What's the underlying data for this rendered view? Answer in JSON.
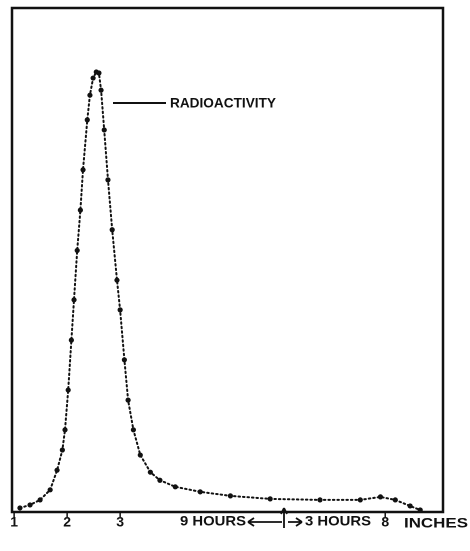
{
  "chart_data": {
    "type": "line",
    "annotation": "RADIOACTIVITY",
    "x_labels": [
      "9 HOURS",
      "3 HOURS"
    ],
    "xlabel": "INCHES",
    "color": "#111111",
    "line_style": "dotted",
    "x": [
      1.11,
      1.3,
      1.49,
      1.68,
      1.81,
      1.91,
      1.96,
      2.02,
      2.08,
      2.13,
      2.19,
      2.25,
      2.3,
      2.38,
      2.43,
      2.49,
      2.55,
      2.6,
      2.64,
      2.7,
      2.77,
      2.85,
      2.94,
      3.0,
      3.08,
      3.15,
      3.25,
      3.38,
      3.57,
      3.75,
      4.04,
      4.51,
      5.08,
      5.83,
      6.77,
      7.53,
      7.91,
      8.19,
      8.47,
      8.66
    ],
    "values": [
      0.8,
      1.4,
      2.4,
      4.4,
      8.3,
      12.3,
      16.3,
      24.2,
      34.1,
      42.1,
      51.9,
      59.9,
      67.9,
      77.8,
      82.7,
      86.1,
      87.3,
      87.1,
      83.7,
      75.8,
      65.9,
      56.0,
      46.0,
      40.1,
      30.2,
      22.2,
      16.3,
      11.3,
      7.9,
      6.3,
      5.0,
      4.0,
      3.2,
      2.6,
      2.4,
      2.4,
      3.0,
      2.4,
      1.2,
      0.4
    ],
    "xlim": [
      0.96,
      9.09
    ],
    "ylim": [
      0,
      100
    ],
    "xticks": [
      1,
      2,
      3,
      8
    ]
  }
}
